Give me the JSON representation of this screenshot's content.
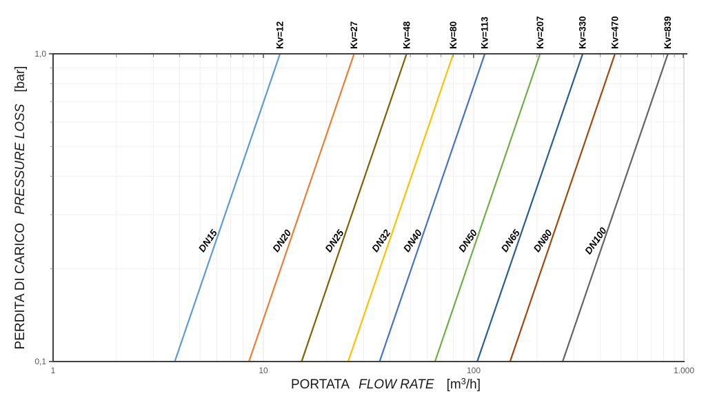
{
  "chart_data": {
    "type": "line",
    "title": "",
    "scale": "log-log",
    "grid": true,
    "legend_position": "none",
    "x_axis": {
      "label_it": "PORTATA",
      "label_en": "FLOW RATE",
      "unit_open": "[m",
      "unit_sup": "3",
      "unit_close": "/h]",
      "scale": "log",
      "min": 1,
      "max": 1000,
      "tick_values": [
        1,
        10,
        100,
        1000
      ],
      "tick_labels": [
        "1",
        "10",
        "100",
        "1.000"
      ]
    },
    "y_axis": {
      "label_it": "PERDITA DI CARICO",
      "label_en": "PRESSURE LOSS",
      "unit": "[bar]",
      "scale": "log",
      "min": 0.1,
      "max": 1.0,
      "tick_values": [
        1.0,
        0.1
      ],
      "tick_labels": [
        "1,0",
        "0,1"
      ]
    },
    "series": [
      {
        "dn": "DN15",
        "kv_label": "Kv=12",
        "kv": 12,
        "color": "#5B9BD5",
        "points": [
          {
            "q": 3.79,
            "dp": 0.1
          },
          {
            "q": 12,
            "dp": 1.0
          }
        ]
      },
      {
        "dn": "DN20",
        "kv_label": "Kv=27",
        "kv": 27,
        "color": "#ED7D31",
        "points": [
          {
            "q": 8.54,
            "dp": 0.1
          },
          {
            "q": 27,
            "dp": 1.0
          }
        ]
      },
      {
        "dn": "DN25",
        "kv_label": "Kv=48",
        "kv": 48,
        "color": "#7F6000",
        "points": [
          {
            "q": 15.2,
            "dp": 0.1
          },
          {
            "q": 48,
            "dp": 1.0
          }
        ]
      },
      {
        "dn": "DN32",
        "kv_label": "Kv=80",
        "kv": 80,
        "color": "#FFC000",
        "points": [
          {
            "q": 25.3,
            "dp": 0.1
          },
          {
            "q": 80,
            "dp": 1.0
          }
        ]
      },
      {
        "dn": "DN40",
        "kv_label": "Kv=113",
        "kv": 113,
        "color": "#4472C4",
        "points": [
          {
            "q": 35.7,
            "dp": 0.1
          },
          {
            "q": 113,
            "dp": 1.0
          }
        ]
      },
      {
        "dn": "DN50",
        "kv_label": "Kv=207",
        "kv": 207,
        "color": "#70AD47",
        "points": [
          {
            "q": 65.5,
            "dp": 0.1
          },
          {
            "q": 207,
            "dp": 1.0
          }
        ]
      },
      {
        "dn": "DN65",
        "kv_label": "Kv=330",
        "kv": 330,
        "color": "#255E91",
        "points": [
          {
            "q": 104,
            "dp": 0.1
          },
          {
            "q": 330,
            "dp": 1.0
          }
        ]
      },
      {
        "dn": "DN80",
        "kv_label": "Kv=470",
        "kv": 470,
        "color": "#9E480E",
        "points": [
          {
            "q": 149,
            "dp": 0.1
          },
          {
            "q": 470,
            "dp": 1.0
          }
        ]
      },
      {
        "dn": "DN100",
        "kv_label": "Kv=839",
        "kv": 839,
        "color": "#636363",
        "points": [
          {
            "q": 265,
            "dp": 0.1
          },
          {
            "q": 839,
            "dp": 1.0
          }
        ]
      }
    ],
    "colors": {
      "axis": "#404040",
      "right_border": "#C9C9C9",
      "grid_minor": "#F0F0F0",
      "grid_major": "#E6E6E6",
      "tick_minor": "#8C8C8C",
      "tick_label": "#595959",
      "label_text": "#000000"
    }
  }
}
